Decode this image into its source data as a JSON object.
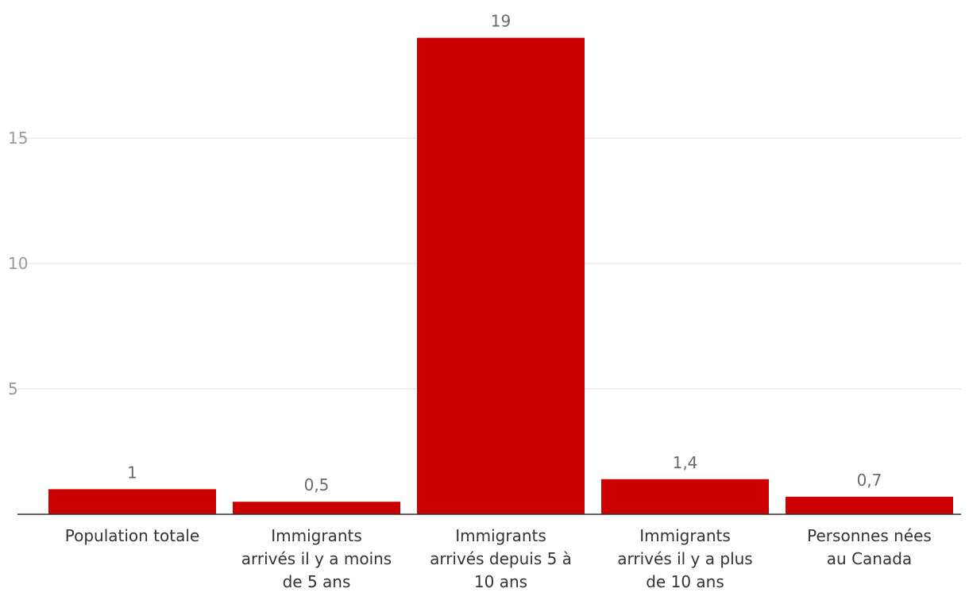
{
  "chart_data": {
    "type": "bar",
    "title": "",
    "xlabel": "",
    "ylabel": "",
    "ylim": [
      0,
      20
    ],
    "yticks": [
      5,
      10,
      15
    ],
    "grid": true,
    "bar_color": "#cc0000",
    "categories": [
      "Population totale",
      "Immigrants arrivés il y a moins de 5 ans",
      "Immigrants arrivés depuis 5 à 10 ans",
      "Immigrants arrivés il y a plus de 10 ans",
      "Personnes nées au Canada"
    ],
    "category_lines": [
      [
        "Population totale"
      ],
      [
        "Immigrants",
        "arrivés il y a moins",
        "de 5 ans"
      ],
      [
        "Immigrants",
        "arrivés depuis 5 à",
        "10 ans"
      ],
      [
        "Immigrants",
        "arrivés il y a plus",
        "de 10 ans"
      ],
      [
        "Personnes nées",
        "au Canada"
      ]
    ],
    "values": [
      1,
      0.5,
      19,
      1.4,
      0.7
    ],
    "value_labels": [
      "1",
      "0,5",
      "19",
      "1,4",
      "0,7"
    ]
  }
}
